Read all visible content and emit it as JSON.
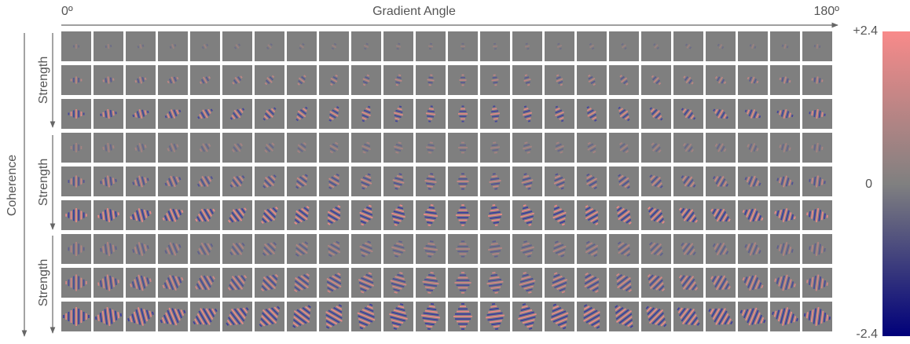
{
  "header": {
    "x_start": "0º",
    "x_title": "Gradient Angle",
    "x_end": "180º"
  },
  "y_axis": {
    "outer": "Coherence",
    "inner": [
      "Strength",
      "Strength",
      "Strength"
    ]
  },
  "colorbar": {
    "max": "+2.4",
    "mid": "0",
    "min": "-2.4"
  }
}
